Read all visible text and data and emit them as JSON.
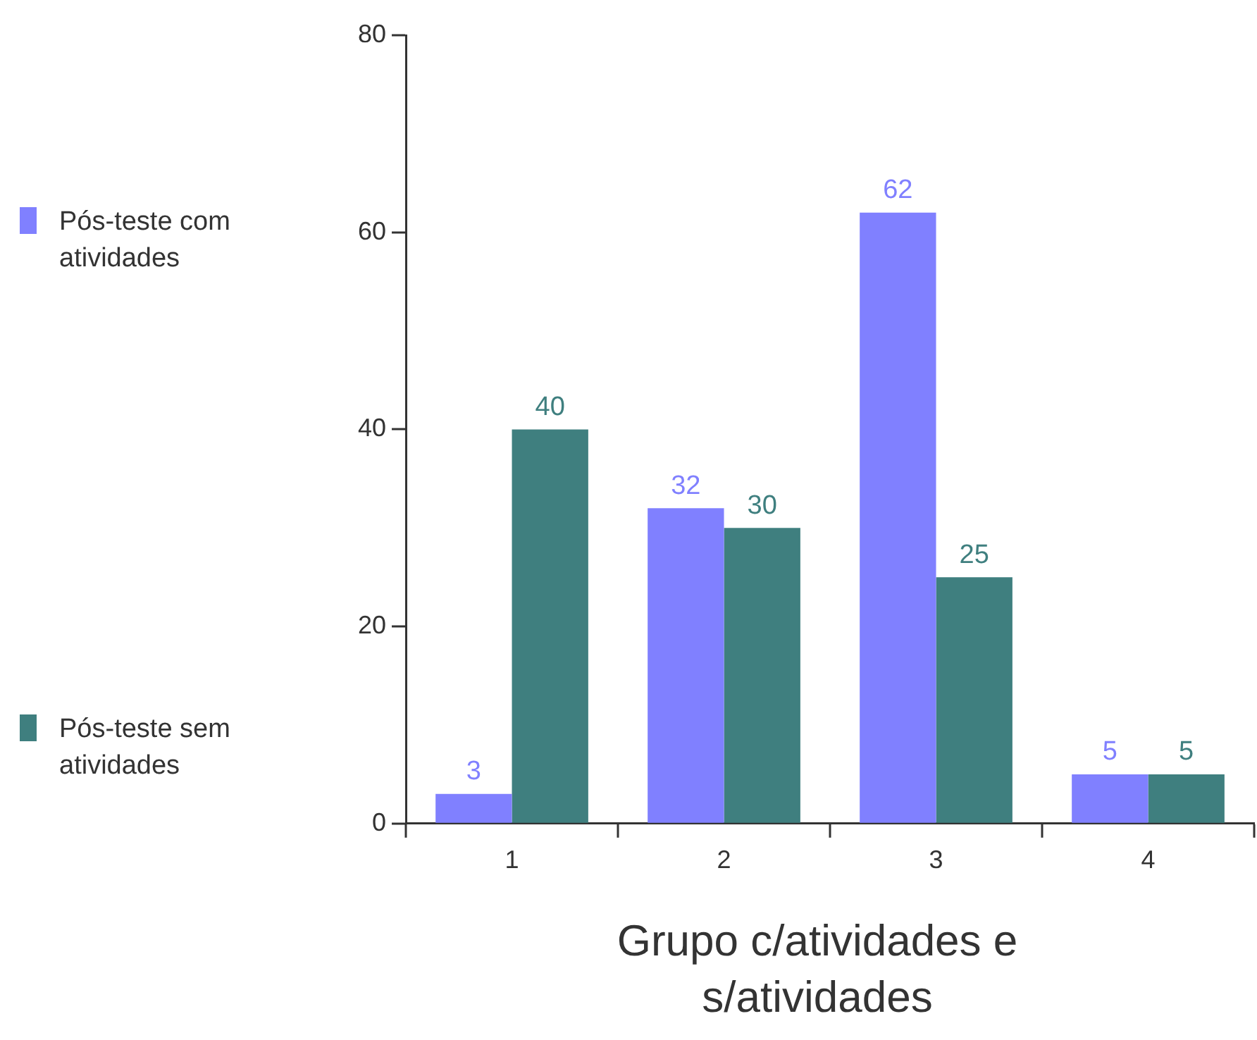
{
  "chart_data": {
    "type": "bar",
    "xlabel": "Grupo c/atividades e s/atividades",
    "categories": [
      "1",
      "2",
      "3",
      "4"
    ],
    "series": [
      {
        "name": "Pós-teste com atividades",
        "color": "#8080ff",
        "values": [
          3,
          32,
          62,
          5
        ]
      },
      {
        "name": "Pós-teste sem atividades",
        "color": "#3f7f7f",
        "values": [
          40,
          30,
          25,
          5
        ]
      }
    ],
    "ylim": [
      0,
      80
    ],
    "yticks": [
      0,
      20,
      40,
      60,
      80
    ],
    "grid": false,
    "legend": "left",
    "data_labels": true
  }
}
